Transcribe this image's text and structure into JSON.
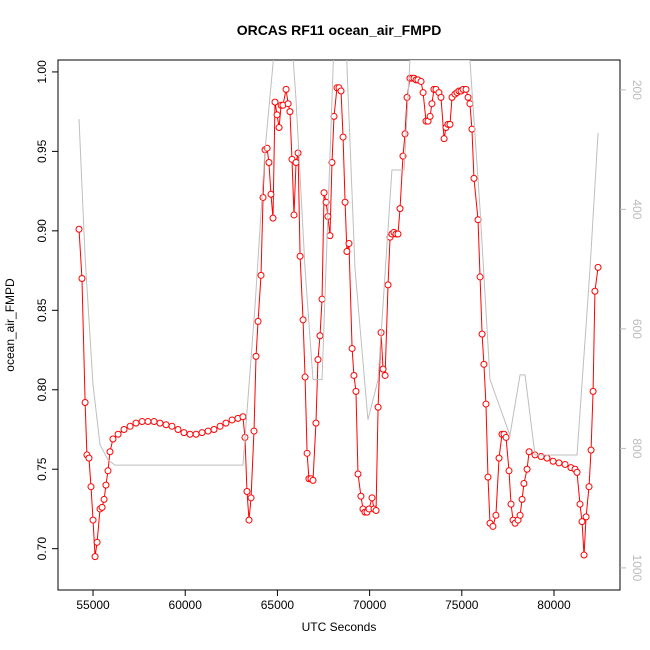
{
  "chart_data": {
    "type": "line",
    "title": "ORCAS RF11 ocean_air_FMPD",
    "xlabel": "UTC Seconds",
    "ylabel": "ocean_air_FMPD",
    "xlim": [
      53100,
      83580
    ],
    "ylim": [
      0.674,
      1.0075
    ],
    "y2lim": [
      1037,
      150
    ],
    "xticks": [
      55000,
      60000,
      65000,
      70000,
      75000,
      80000
    ],
    "yticks": [
      {
        "value": 0.7,
        "label": "0.70"
      },
      0.75,
      {
        "value": 0.8,
        "label": "0.80"
      },
      0.85,
      {
        "value": 0.9,
        "label": "0.90"
      },
      0.95,
      {
        "value": 1.0,
        "label": "1.00"
      }
    ],
    "y2ticks": [
      200,
      400,
      600,
      800,
      1000
    ],
    "series": [
      {
        "color": "#ff0000",
        "markers": true,
        "x": [
          54240,
          54400,
          54570,
          54670,
          54780,
          54890,
          55000,
          55110,
          55220,
          55380,
          55490,
          55600,
          55700,
          55810,
          55920,
          56080,
          56360,
          56680,
          57010,
          57330,
          57660,
          57980,
          58310,
          58630,
          58960,
          59280,
          59610,
          59930,
          60260,
          60590,
          60910,
          61240,
          61560,
          61890,
          62210,
          62540,
          62860,
          63130,
          63240,
          63350,
          63460,
          63570,
          63730,
          63840,
          63950,
          64110,
          64220,
          64330,
          64440,
          64540,
          64650,
          64760,
          64870,
          64980,
          65090,
          65200,
          65300,
          65470,
          65580,
          65680,
          65790,
          65900,
          66010,
          66120,
          66230,
          66390,
          66500,
          66610,
          66710,
          66820,
          66930,
          67090,
          67200,
          67310,
          67420,
          67530,
          67640,
          67740,
          67850,
          67960,
          68070,
          68230,
          68340,
          68450,
          68560,
          68670,
          68770,
          68880,
          69050,
          69150,
          69260,
          69370,
          69530,
          69640,
          69750,
          69860,
          69970,
          70130,
          70240,
          70350,
          70460,
          70620,
          70730,
          70840,
          71000,
          71110,
          71210,
          71320,
          71430,
          71540,
          71650,
          71810,
          71920,
          72030,
          72190,
          72300,
          72410,
          72520,
          72620,
          72790,
          72900,
          73060,
          73170,
          73280,
          73380,
          73490,
          73600,
          73760,
          73870,
          74040,
          74140,
          74250,
          74360,
          74470,
          74630,
          74740,
          74850,
          74960,
          75070,
          75230,
          75340,
          75440,
          75550,
          75660,
          75880,
          75990,
          76100,
          76200,
          76310,
          76420,
          76530,
          76690,
          76850,
          77020,
          77180,
          77290,
          77400,
          77560,
          77670,
          77780,
          77890,
          78050,
          78160,
          78270,
          78370,
          78540,
          78650,
          78970,
          79300,
          79620,
          79950,
          80270,
          80600,
          80920,
          81140,
          81250,
          81410,
          81520,
          81630,
          81740,
          81900,
          82010,
          82120,
          82220,
          82390
        ],
        "values": [
          0.901,
          0.87,
          0.792,
          0.759,
          0.757,
          0.739,
          0.718,
          0.695,
          0.704,
          0.725,
          0.726,
          0.731,
          0.74,
          0.749,
          0.761,
          0.769,
          0.772,
          0.775,
          0.777,
          0.779,
          0.78,
          0.78,
          0.78,
          0.779,
          0.778,
          0.777,
          0.775,
          0.773,
          0.772,
          0.772,
          0.773,
          0.774,
          0.775,
          0.777,
          0.779,
          0.781,
          0.782,
          0.783,
          0.77,
          0.736,
          0.718,
          0.732,
          0.774,
          0.821,
          0.843,
          0.872,
          0.921,
          0.951,
          0.952,
          0.943,
          0.923,
          0.908,
          0.981,
          0.973,
          0.965,
          0.979,
          0.979,
          0.989,
          0.98,
          0.975,
          0.945,
          0.91,
          0.943,
          0.949,
          0.884,
          0.844,
          0.808,
          0.76,
          0.744,
          0.744,
          0.743,
          0.779,
          0.819,
          0.834,
          0.857,
          0.924,
          0.918,
          0.909,
          0.897,
          0.943,
          0.972,
          0.99,
          0.99,
          0.988,
          0.959,
          0.918,
          0.887,
          0.892,
          0.826,
          0.809,
          0.799,
          0.747,
          0.733,
          0.725,
          0.723,
          0.723,
          0.725,
          0.732,
          0.725,
          0.724,
          0.789,
          0.836,
          0.813,
          0.809,
          0.866,
          0.896,
          0.898,
          0.899,
          0.898,
          0.898,
          0.914,
          0.947,
          0.961,
          0.984,
          0.996,
          0.996,
          0.996,
          0.995,
          0.995,
          0.994,
          0.987,
          0.969,
          0.969,
          0.972,
          0.98,
          0.989,
          0.989,
          0.987,
          0.984,
          0.958,
          0.965,
          0.967,
          0.967,
          0.984,
          0.986,
          0.987,
          0.988,
          0.988,
          0.989,
          0.989,
          0.984,
          0.98,
          0.964,
          0.933,
          0.907,
          0.871,
          0.835,
          0.816,
          0.791,
          0.745,
          0.716,
          0.714,
          0.721,
          0.757,
          0.772,
          0.772,
          0.77,
          0.749,
          0.728,
          0.718,
          0.716,
          0.718,
          0.721,
          0.731,
          0.741,
          0.75,
          0.761,
          0.759,
          0.758,
          0.757,
          0.755,
          0.754,
          0.753,
          0.751,
          0.75,
          0.748,
          0.728,
          0.717,
          0.696,
          0.72,
          0.739,
          0.762,
          0.799,
          0.862,
          0.877
        ]
      },
      {
        "color": "#bebebe",
        "axis": "y2",
        "markers": false,
        "x": [
          54240,
          54570,
          55000,
          55380,
          55810,
          56190,
          63130,
          63790,
          64330,
          64870,
          65790,
          66010,
          66500,
          66930,
          67420,
          68070,
          68720,
          69210,
          69910,
          70460,
          71210,
          71870,
          72190,
          75440,
          75990,
          76530,
          77610,
          78160,
          78430,
          78970,
          81250,
          81950,
          82390
        ],
        "values": [
          249,
          480,
          694,
          794,
          819,
          828,
          828,
          560,
          300,
          120,
          120,
          217,
          500,
          685,
          685,
          120,
          120,
          500,
          752,
          685,
          334,
          334,
          150,
          150,
          400,
          685,
          778,
          677,
          677,
          811,
          811,
          501,
          272
        ]
      }
    ]
  }
}
